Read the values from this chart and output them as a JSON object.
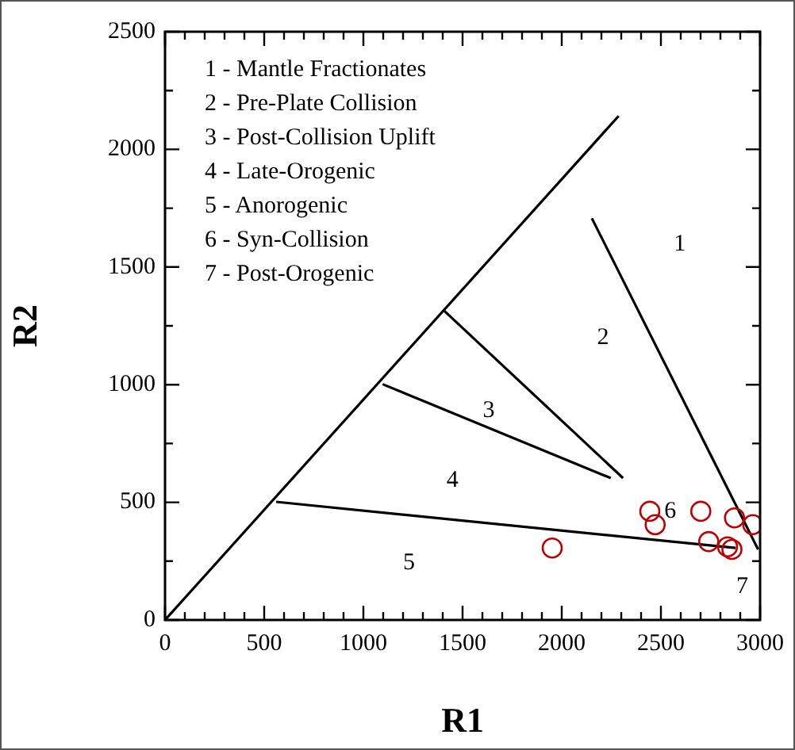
{
  "chart_data": {
    "type": "scatter",
    "xlabel": "R1",
    "ylabel": "R2",
    "xlim": [
      0,
      3000
    ],
    "ylim": [
      0,
      2500
    ],
    "xticks": [
      0,
      {
        "value": 100,
        "label": null
      },
      {
        "value": 200,
        "label": null
      },
      {
        "value": 300,
        "label": null
      },
      {
        "value": 400,
        "label": null
      },
      500,
      {
        "value": 600,
        "label": null
      },
      {
        "value": 700,
        "label": null
      },
      {
        "value": 800,
        "label": null
      },
      {
        "value": 900,
        "label": null
      },
      1000,
      {
        "value": 1100,
        "label": null
      },
      {
        "value": 1200,
        "label": null
      },
      {
        "value": 1300,
        "label": null
      },
      {
        "value": 1400,
        "label": null
      },
      1500,
      {
        "value": 1600,
        "label": null
      },
      {
        "value": 1700,
        "label": null
      },
      {
        "value": 1800,
        "label": null
      },
      {
        "value": 1900,
        "label": null
      },
      2000,
      {
        "value": 2100,
        "label": null
      },
      {
        "value": 2200,
        "label": null
      },
      {
        "value": 2300,
        "label": null
      },
      {
        "value": 2400,
        "label": null
      },
      2500,
      {
        "value": 2600,
        "label": null
      },
      {
        "value": 2700,
        "label": null
      },
      {
        "value": 2800,
        "label": null
      },
      {
        "value": 2900,
        "label": null
      },
      3000
    ],
    "yticks": [
      0,
      {
        "value": 250,
        "label": null
      },
      500,
      {
        "value": 750,
        "label": null
      },
      1000,
      {
        "value": 1250,
        "label": null
      },
      1500,
      {
        "value": 1750,
        "label": null
      },
      2000,
      {
        "value": 2250,
        "label": null
      },
      2500
    ],
    "grid": false,
    "legend": false,
    "series": [
      {
        "marker": "circle",
        "color": "#c00000",
        "x": [
          1952,
          2444,
          2471,
          2701,
          2871,
          2963,
          2741,
          2836,
          2858
        ],
        "values": [
          306,
          462,
          405,
          462,
          434,
          405,
          333,
          311,
          300
        ]
      },
      {
        "type": "line",
        "marker": "none",
        "color": "#000000",
        "x": [
          0,
          2287
        ],
        "values": [
          0,
          2142
        ]
      },
      {
        "type": "line",
        "marker": "none",
        "color": "#000000",
        "x": [
          2152,
          2990
        ],
        "values": [
          1707,
          300
        ]
      },
      {
        "type": "line",
        "marker": "none",
        "color": "#000000",
        "x": [
          560,
          2877
        ],
        "values": [
          502,
          306
        ]
      },
      {
        "type": "line",
        "marker": "none",
        "color": "#000000",
        "x": [
          1097,
          2247
        ],
        "values": [
          1002,
          603
        ]
      },
      {
        "type": "line",
        "marker": "none",
        "color": "#000000",
        "x": [
          1409,
          2309
        ],
        "values": [
          1313,
          603
        ]
      }
    ],
    "annotations": [
      "1 - Mantle Fractionates",
      "2 - Pre-Plate Collision",
      "3 - Post-Collision Uplift",
      "4 - Late-Orogenic",
      "5 - Anorogenic",
      "6 - Syn-Collision",
      "7 - Post-Orogenic",
      "1",
      "2",
      "3",
      "4",
      "5",
      "6",
      "7"
    ]
  }
}
